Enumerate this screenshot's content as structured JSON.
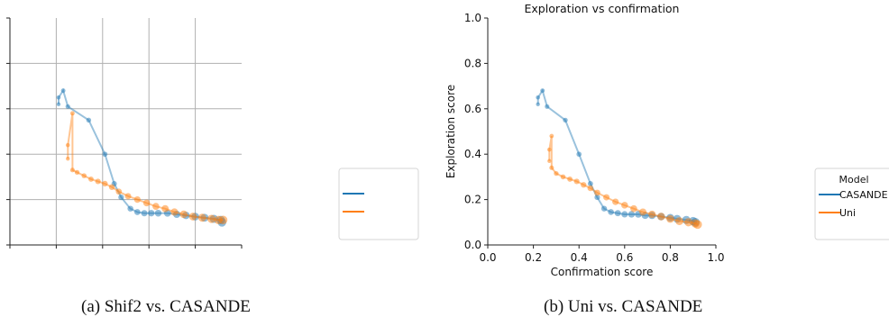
{
  "captions": {
    "a": "(a) Shif2 vs. CASANDE",
    "b": "(b) Uni vs. CASANDE"
  },
  "colors": {
    "CASANDE": "#1f77b4",
    "Uni": "#ff7f0e",
    "grid": "#b0b0b0",
    "axis": "#222222"
  },
  "chart_data": [
    {
      "type": "scatter",
      "title": "",
      "xlabel": "",
      "ylabel": "",
      "xlim": [
        0.0,
        1.0
      ],
      "ylim": [
        0.0,
        1.0
      ],
      "grid": true,
      "legend": {
        "title": "",
        "placement": "right",
        "entries": [
          "",
          ""
        ]
      },
      "series": [
        {
          "key": "CASANDE",
          "name": "",
          "points": [
            [
              0.21,
              0.62
            ],
            [
              0.21,
              0.65
            ],
            [
              0.23,
              0.68
            ],
            [
              0.25,
              0.61
            ],
            [
              0.34,
              0.55
            ],
            [
              0.41,
              0.4
            ],
            [
              0.45,
              0.27
            ],
            [
              0.48,
              0.21
            ],
            [
              0.52,
              0.16
            ],
            [
              0.55,
              0.145
            ],
            [
              0.58,
              0.14
            ],
            [
              0.61,
              0.14
            ],
            [
              0.64,
              0.14
            ],
            [
              0.68,
              0.14
            ],
            [
              0.72,
              0.135
            ],
            [
              0.76,
              0.13
            ],
            [
              0.8,
              0.125
            ],
            [
              0.84,
              0.12
            ],
            [
              0.88,
              0.115
            ],
            [
              0.91,
              0.11
            ],
            [
              0.915,
              0.1
            ]
          ]
        },
        {
          "key": "Uni",
          "name": "",
          "points": [
            [
              0.25,
              0.38
            ],
            [
              0.25,
              0.44
            ],
            [
              0.27,
              0.58
            ],
            [
              0.27,
              0.33
            ],
            [
              0.29,
              0.32
            ],
            [
              0.32,
              0.305
            ],
            [
              0.35,
              0.29
            ],
            [
              0.38,
              0.28
            ],
            [
              0.41,
              0.27
            ],
            [
              0.44,
              0.255
            ],
            [
              0.47,
              0.235
            ],
            [
              0.51,
              0.215
            ],
            [
              0.55,
              0.2
            ],
            [
              0.59,
              0.185
            ],
            [
              0.63,
              0.17
            ],
            [
              0.67,
              0.16
            ],
            [
              0.71,
              0.145
            ],
            [
              0.75,
              0.135
            ],
            [
              0.79,
              0.125
            ],
            [
              0.83,
              0.12
            ],
            [
              0.87,
              0.115
            ],
            [
              0.9,
              0.11
            ],
            [
              0.92,
              0.11
            ]
          ]
        }
      ]
    },
    {
      "type": "scatter",
      "title": "Exploration vs confirmation",
      "xlabel": "Confirmation score",
      "ylabel": "Exploration score",
      "xlim": [
        0.0,
        1.0
      ],
      "ylim": [
        0.0,
        1.0
      ],
      "xticks": [
        "0.0",
        "0.2",
        "0.4",
        "0.6",
        "0.8",
        "1.0"
      ],
      "yticks": [
        "0.0",
        "0.2",
        "0.4",
        "0.6",
        "0.8",
        "1.0"
      ],
      "grid": false,
      "legend": {
        "title": "Model",
        "placement": "right",
        "entries": [
          "CASANDE",
          "Uni"
        ]
      },
      "series": [
        {
          "key": "CASANDE",
          "name": "CASANDE",
          "points": [
            [
              0.22,
              0.62
            ],
            [
              0.22,
              0.65
            ],
            [
              0.24,
              0.68
            ],
            [
              0.26,
              0.61
            ],
            [
              0.34,
              0.55
            ],
            [
              0.4,
              0.4
            ],
            [
              0.45,
              0.27
            ],
            [
              0.48,
              0.21
            ],
            [
              0.51,
              0.16
            ],
            [
              0.54,
              0.145
            ],
            [
              0.57,
              0.14
            ],
            [
              0.6,
              0.135
            ],
            [
              0.63,
              0.135
            ],
            [
              0.66,
              0.135
            ],
            [
              0.69,
              0.13
            ],
            [
              0.72,
              0.13
            ],
            [
              0.76,
              0.125
            ],
            [
              0.8,
              0.12
            ],
            [
              0.83,
              0.115
            ],
            [
              0.87,
              0.11
            ],
            [
              0.9,
              0.105
            ],
            [
              0.91,
              0.1
            ]
          ]
        },
        {
          "key": "Uni",
          "name": "Uni",
          "points": [
            [
              0.27,
              0.37
            ],
            [
              0.27,
              0.42
            ],
            [
              0.28,
              0.48
            ],
            [
              0.28,
              0.34
            ],
            [
              0.3,
              0.315
            ],
            [
              0.33,
              0.3
            ],
            [
              0.36,
              0.29
            ],
            [
              0.39,
              0.28
            ],
            [
              0.42,
              0.265
            ],
            [
              0.45,
              0.25
            ],
            [
              0.48,
              0.23
            ],
            [
              0.52,
              0.21
            ],
            [
              0.56,
              0.19
            ],
            [
              0.6,
              0.175
            ],
            [
              0.64,
              0.16
            ],
            [
              0.68,
              0.145
            ],
            [
              0.72,
              0.135
            ],
            [
              0.76,
              0.125
            ],
            [
              0.8,
              0.115
            ],
            [
              0.84,
              0.105
            ],
            [
              0.88,
              0.1
            ],
            [
              0.91,
              0.095
            ],
            [
              0.92,
              0.09
            ]
          ]
        }
      ]
    }
  ]
}
